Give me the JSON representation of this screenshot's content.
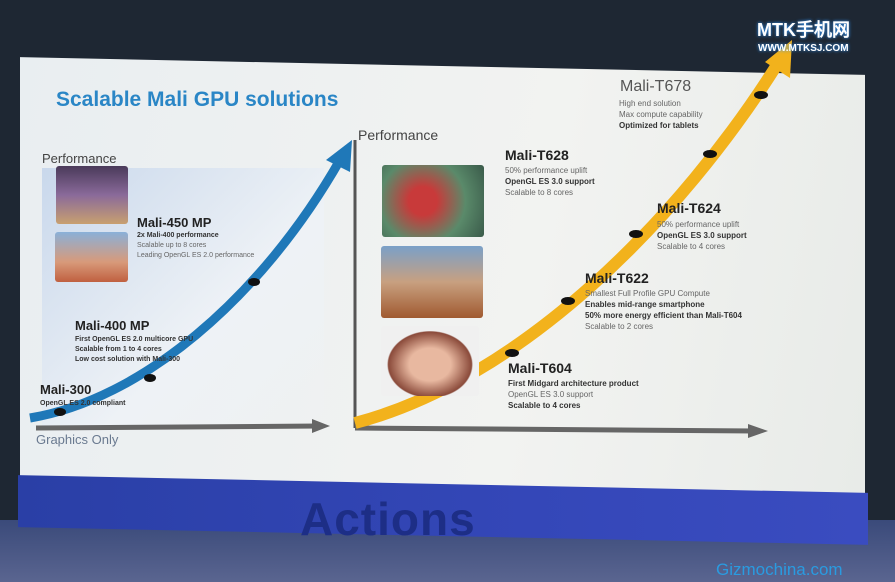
{
  "slide": {
    "title": "Scalable Mali GPU solutions",
    "footer_band_text": "Actions",
    "accent_blue": "#2a86c6",
    "accent_orange": "#f2b21c"
  },
  "left_chart": {
    "y_label": "Performance",
    "x_label": "Graphics Only",
    "products": [
      {
        "name": "Mali-300",
        "lines": [
          "OpenGL ES 2.0 compliant"
        ]
      },
      {
        "name": "Mali-400 MP",
        "lines": [
          "First OpenGL ES 2.0 multicore GPU",
          "Scalable from 1 to 4 cores",
          "Low cost solution with Mali-300"
        ]
      },
      {
        "name": "Mali-450 MP",
        "lines": [
          "2x Mali-400 performance",
          "Scalable up to 8 cores",
          "Leading OpenGL ES 2.0 performance"
        ]
      }
    ]
  },
  "right_chart": {
    "y_label": "Performance",
    "products": [
      {
        "name": "Mali-T604",
        "lines": [
          "First Midgard architecture product",
          "OpenGL ES 3.0 support",
          "Scalable to 4 cores"
        ]
      },
      {
        "name": "Mali-T622",
        "lines": [
          "Smallest Full Profile GPU Compute",
          "Enables mid-range smartphone",
          "50% more energy efficient than Mali-T604",
          "Scalable to 2 cores"
        ]
      },
      {
        "name": "Mali-T624",
        "lines": [
          "50% performance uplift",
          "OpenGL ES 3.0 support",
          "Scalable to 4 cores"
        ]
      },
      {
        "name": "Mali-T628",
        "lines": [
          "50% performance uplift",
          "OpenGL ES 3.0 support",
          "Scalable to 8 cores"
        ]
      },
      {
        "name": "Mali-T678",
        "lines": [
          "High end solution",
          "Max compute capability",
          "Optimized for tablets"
        ]
      }
    ]
  },
  "watermarks": {
    "top_logo": "MTK手机网",
    "top_url": "WWW.MTKSJ.COM",
    "bottom": "Gizmochina.com"
  }
}
